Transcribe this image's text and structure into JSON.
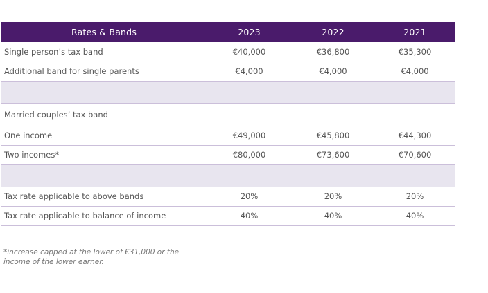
{
  "table": {
    "headers": [
      "Rates & Bands",
      "2023",
      "2022",
      "2021"
    ],
    "rows": [
      {
        "label": "Single person’s tax band",
        "values": [
          "€40,000",
          "€36,800",
          "€35,300"
        ]
      },
      {
        "label": "Additional band for single parents",
        "values": [
          "€4,000",
          "€4,000",
          "€4,000"
        ]
      },
      {
        "label": "",
        "values": [
          "",
          "",
          ""
        ]
      },
      {
        "label": "Married couples’ tax band",
        "values": [
          "",
          "",
          ""
        ]
      },
      {
        "label": "One income",
        "values": [
          "€49,000",
          "€45,800",
          "€44,300"
        ]
      },
      {
        "label": "Two incomes*",
        "values": [
          "€80,000",
          "€73,600",
          "€70,600"
        ]
      },
      {
        "label": "",
        "values": [
          "",
          "",
          ""
        ]
      },
      {
        "label": "Tax rate applicable to above bands",
        "values": [
          "20%",
          "20%",
          "20%"
        ]
      },
      {
        "label": "Tax rate applicable to balance of income",
        "values": [
          "40%",
          "40%",
          "40%"
        ]
      }
    ]
  },
  "footnote": {
    "line1": "*increase capped at the lower of €31,000 or the",
    "line2": "income of the lower earner."
  },
  "colors": {
    "header_bg": "#4a1b6b",
    "shaded_row_bg": "#e8e5ef",
    "row_divider": "#cbbfda"
  }
}
